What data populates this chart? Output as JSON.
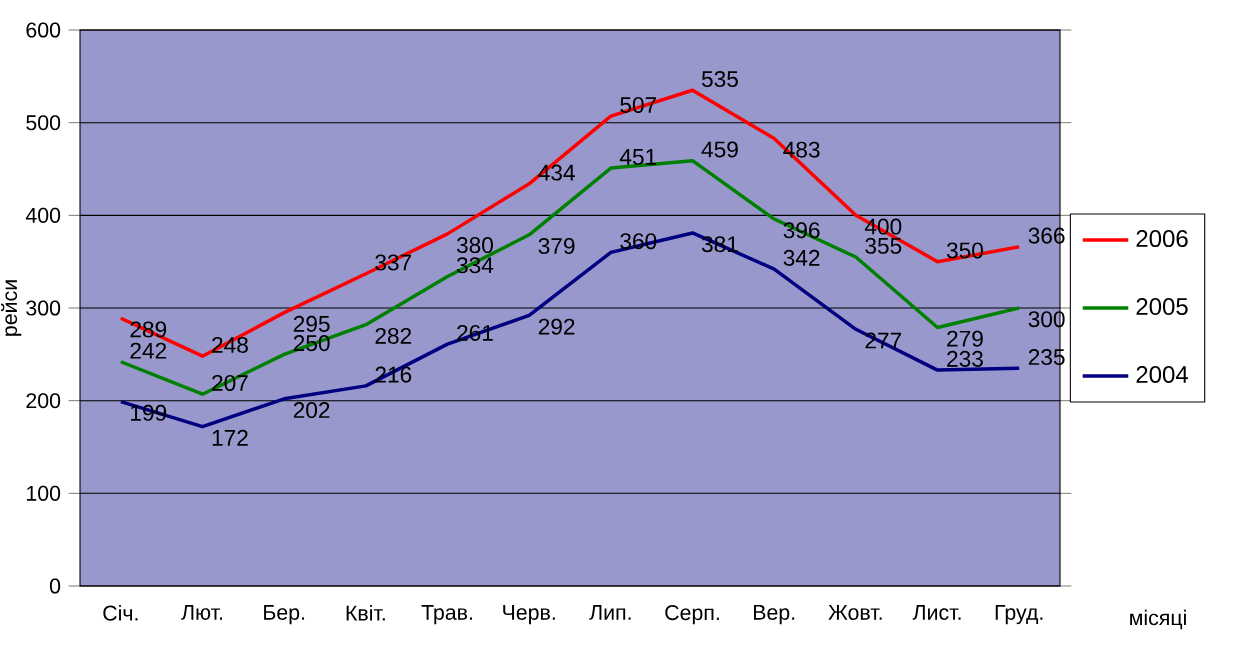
{
  "chart_data": {
    "type": "line",
    "xlabel": "місяці",
    "ylabel": "рейси",
    "categories": [
      "Січ.",
      "Лют.",
      "Бер.",
      "Квіт.",
      "Трав.",
      "Черв.",
      "Лип.",
      "Серп.",
      "Вер.",
      "Жовт.",
      "Лист.",
      "Груд."
    ],
    "series": [
      {
        "name": "2006",
        "color": "#ff0000",
        "values": [
          289,
          248,
          295,
          337,
          380,
          434,
          507,
          535,
          483,
          400,
          350,
          366
        ]
      },
      {
        "name": "2005",
        "color": "#008000",
        "values": [
          242,
          207,
          250,
          282,
          334,
          379,
          451,
          459,
          396,
          355,
          279,
          300
        ]
      },
      {
        "name": "2004",
        "color": "#000080",
        "values": [
          199,
          172,
          202,
          216,
          261,
          292,
          360,
          381,
          342,
          277,
          233,
          235
        ]
      }
    ],
    "ylim": [
      0,
      600
    ],
    "yticks": [
      0,
      100,
      200,
      300,
      400,
      500,
      600
    ],
    "grid": "y",
    "legend": "right",
    "data_labels": true,
    "marker": "none",
    "line_style": "solid"
  }
}
